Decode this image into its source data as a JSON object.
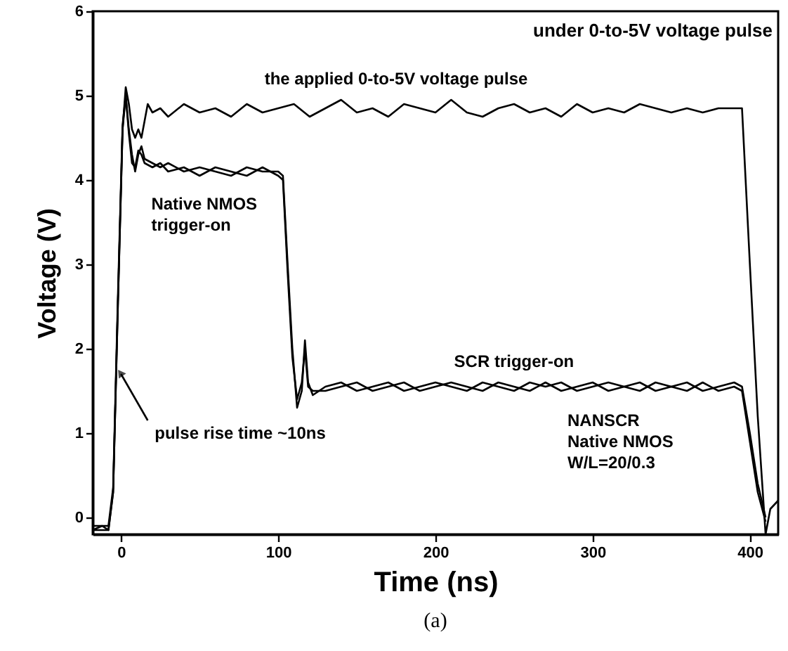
{
  "chart_data": {
    "type": "line",
    "xlabel": "Time (ns)",
    "ylabel": "Voltage (V)",
    "xlim": [
      -18,
      418
    ],
    "ylim": [
      -0.2,
      6
    ],
    "xticks": [
      0,
      100,
      200,
      300,
      400
    ],
    "yticks": [
      0,
      1,
      2,
      3,
      4,
      5,
      6
    ],
    "grid": false,
    "marker": "none",
    "line_style": "solid",
    "series": [
      {
        "color": "#000000",
        "x": [
          -18,
          -12,
          -8,
          -5,
          -2,
          1,
          3,
          5,
          7,
          9,
          11,
          13,
          15,
          17,
          20,
          25,
          30,
          40,
          50,
          60,
          70,
          80,
          90,
          100,
          110,
          120,
          130,
          140,
          150,
          160,
          170,
          180,
          190,
          200,
          210,
          220,
          230,
          240,
          250,
          260,
          270,
          280,
          290,
          300,
          310,
          320,
          330,
          340,
          350,
          360,
          370,
          380,
          390,
          395,
          400,
          405,
          410,
          413,
          418
        ],
        "values": [
          -0.15,
          -0.1,
          -0.15,
          0.3,
          2.5,
          4.6,
          5.1,
          4.9,
          4.6,
          4.5,
          4.6,
          4.5,
          4.7,
          4.9,
          4.8,
          4.85,
          4.75,
          4.9,
          4.8,
          4.85,
          4.75,
          4.9,
          4.8,
          4.85,
          4.9,
          4.75,
          4.85,
          4.95,
          4.8,
          4.85,
          4.75,
          4.9,
          4.85,
          4.8,
          4.95,
          4.8,
          4.75,
          4.85,
          4.9,
          4.8,
          4.85,
          4.75,
          4.9,
          4.8,
          4.85,
          4.8,
          4.9,
          4.85,
          4.8,
          4.85,
          4.8,
          4.85,
          4.85,
          4.85,
          3.0,
          1.2,
          -0.2,
          0.1,
          0.2
        ]
      },
      {
        "color": "#000000",
        "x": [
          -18,
          -8,
          -5,
          -2,
          1,
          3,
          5,
          7,
          9,
          11,
          13,
          15,
          20,
          25,
          30,
          40,
          50,
          60,
          70,
          80,
          90,
          100,
          103,
          106,
          109,
          112,
          115,
          117,
          119,
          122,
          130,
          140,
          150,
          160,
          170,
          180,
          190,
          200,
          210,
          220,
          230,
          240,
          250,
          260,
          270,
          280,
          290,
          300,
          310,
          320,
          330,
          340,
          350,
          360,
          370,
          380,
          390,
          395,
          400,
          405,
          410
        ],
        "values": [
          -0.15,
          -0.15,
          0.3,
          2.5,
          4.6,
          5.0,
          4.6,
          4.3,
          4.1,
          4.3,
          4.4,
          4.25,
          4.2,
          4.15,
          4.2,
          4.1,
          4.15,
          4.1,
          4.05,
          4.15,
          4.1,
          4.1,
          4.05,
          3.0,
          2.0,
          1.3,
          1.5,
          2.1,
          1.6,
          1.45,
          1.55,
          1.6,
          1.5,
          1.55,
          1.6,
          1.5,
          1.55,
          1.6,
          1.55,
          1.5,
          1.6,
          1.55,
          1.5,
          1.6,
          1.55,
          1.6,
          1.5,
          1.55,
          1.6,
          1.55,
          1.5,
          1.6,
          1.55,
          1.6,
          1.5,
          1.55,
          1.6,
          1.55,
          1.0,
          0.4,
          0.0
        ]
      },
      {
        "color": "#000000",
        "x": [
          -18,
          -8,
          -5,
          -2,
          1,
          3,
          5,
          7,
          9,
          11,
          13,
          15,
          20,
          25,
          30,
          40,
          50,
          60,
          70,
          80,
          90,
          100,
          103,
          106,
          109,
          112,
          115,
          117,
          119,
          122,
          130,
          140,
          150,
          160,
          170,
          180,
          190,
          200,
          210,
          220,
          230,
          240,
          250,
          260,
          270,
          280,
          290,
          300,
          310,
          320,
          330,
          340,
          350,
          360,
          370,
          380,
          390,
          395,
          400,
          405,
          410
        ],
        "values": [
          -0.1,
          -0.1,
          0.35,
          2.6,
          4.65,
          5.0,
          4.55,
          4.2,
          4.15,
          4.35,
          4.3,
          4.2,
          4.15,
          4.2,
          4.1,
          4.15,
          4.05,
          4.15,
          4.1,
          4.05,
          4.15,
          4.05,
          4.0,
          2.9,
          1.9,
          1.4,
          1.6,
          2.0,
          1.55,
          1.5,
          1.5,
          1.55,
          1.6,
          1.5,
          1.55,
          1.6,
          1.5,
          1.55,
          1.6,
          1.55,
          1.5,
          1.6,
          1.55,
          1.5,
          1.6,
          1.5,
          1.55,
          1.6,
          1.5,
          1.55,
          1.6,
          1.5,
          1.55,
          1.5,
          1.6,
          1.5,
          1.55,
          1.5,
          0.9,
          0.3,
          -0.05
        ]
      }
    ],
    "annotations": [
      "under 0-to-5V voltage pulse",
      {
        "text": "the applied 0-to-5V voltage pulse",
        "x": 175,
        "y": 4.85
      },
      {
        "text": "Native NMOS\ntrigger-on",
        "x": 55,
        "y": 4.1
      },
      {
        "text": "SCR trigger-on",
        "x": 250,
        "y": 1.6
      },
      {
        "text": "pulse rise time ~10ns",
        "x": 0,
        "y": 1.7
      },
      "NANSCR\nNative NMOS\nW/L=20/0.3",
      "(a)"
    ]
  }
}
